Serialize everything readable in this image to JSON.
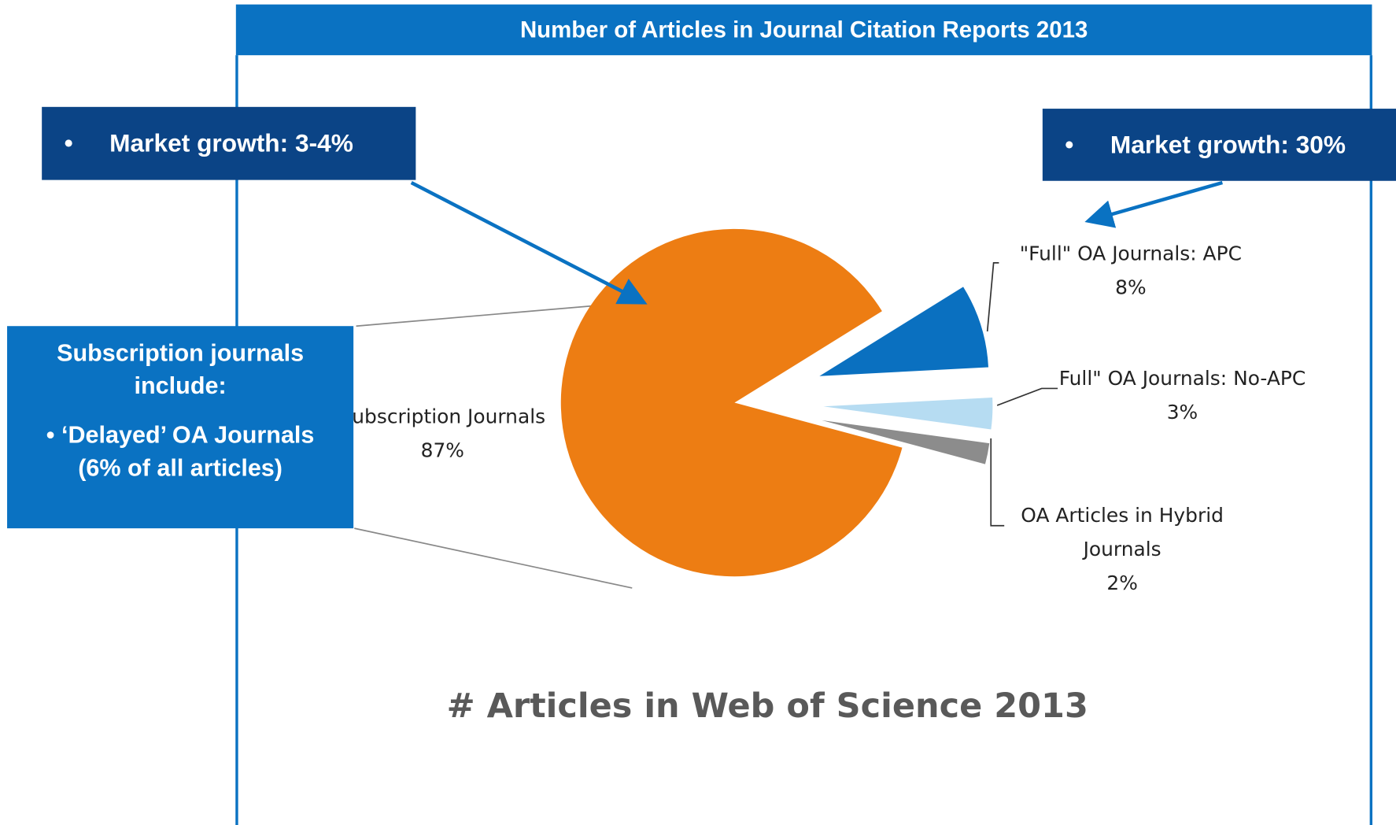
{
  "header": {
    "title": "Number of Articles in Journal Citation Reports 2013"
  },
  "chart_data": {
    "type": "pie",
    "title": "# Articles in Web of Science 2013",
    "categories": [
      "Subscription Journals",
      "\"Full\" OA Journals: APC",
      "Full\" OA Journals: No-APC",
      "OA Articles in Hybrid Journals"
    ],
    "values": [
      87,
      8,
      3,
      2
    ],
    "value_labels": [
      "87%",
      "8%",
      "3%",
      "2%"
    ],
    "colors": [
      "#ed7d13",
      "#0a70c0",
      "#b6dcf2",
      "#8c8c8c"
    ]
  },
  "annotations": {
    "left_callout": "Market growth: 3-4%",
    "right_callout": "Market growth: 30%",
    "box_title": "Subscription journals include:",
    "box_bullet": "‘Delayed’ OA Journals (6% of all articles)"
  }
}
